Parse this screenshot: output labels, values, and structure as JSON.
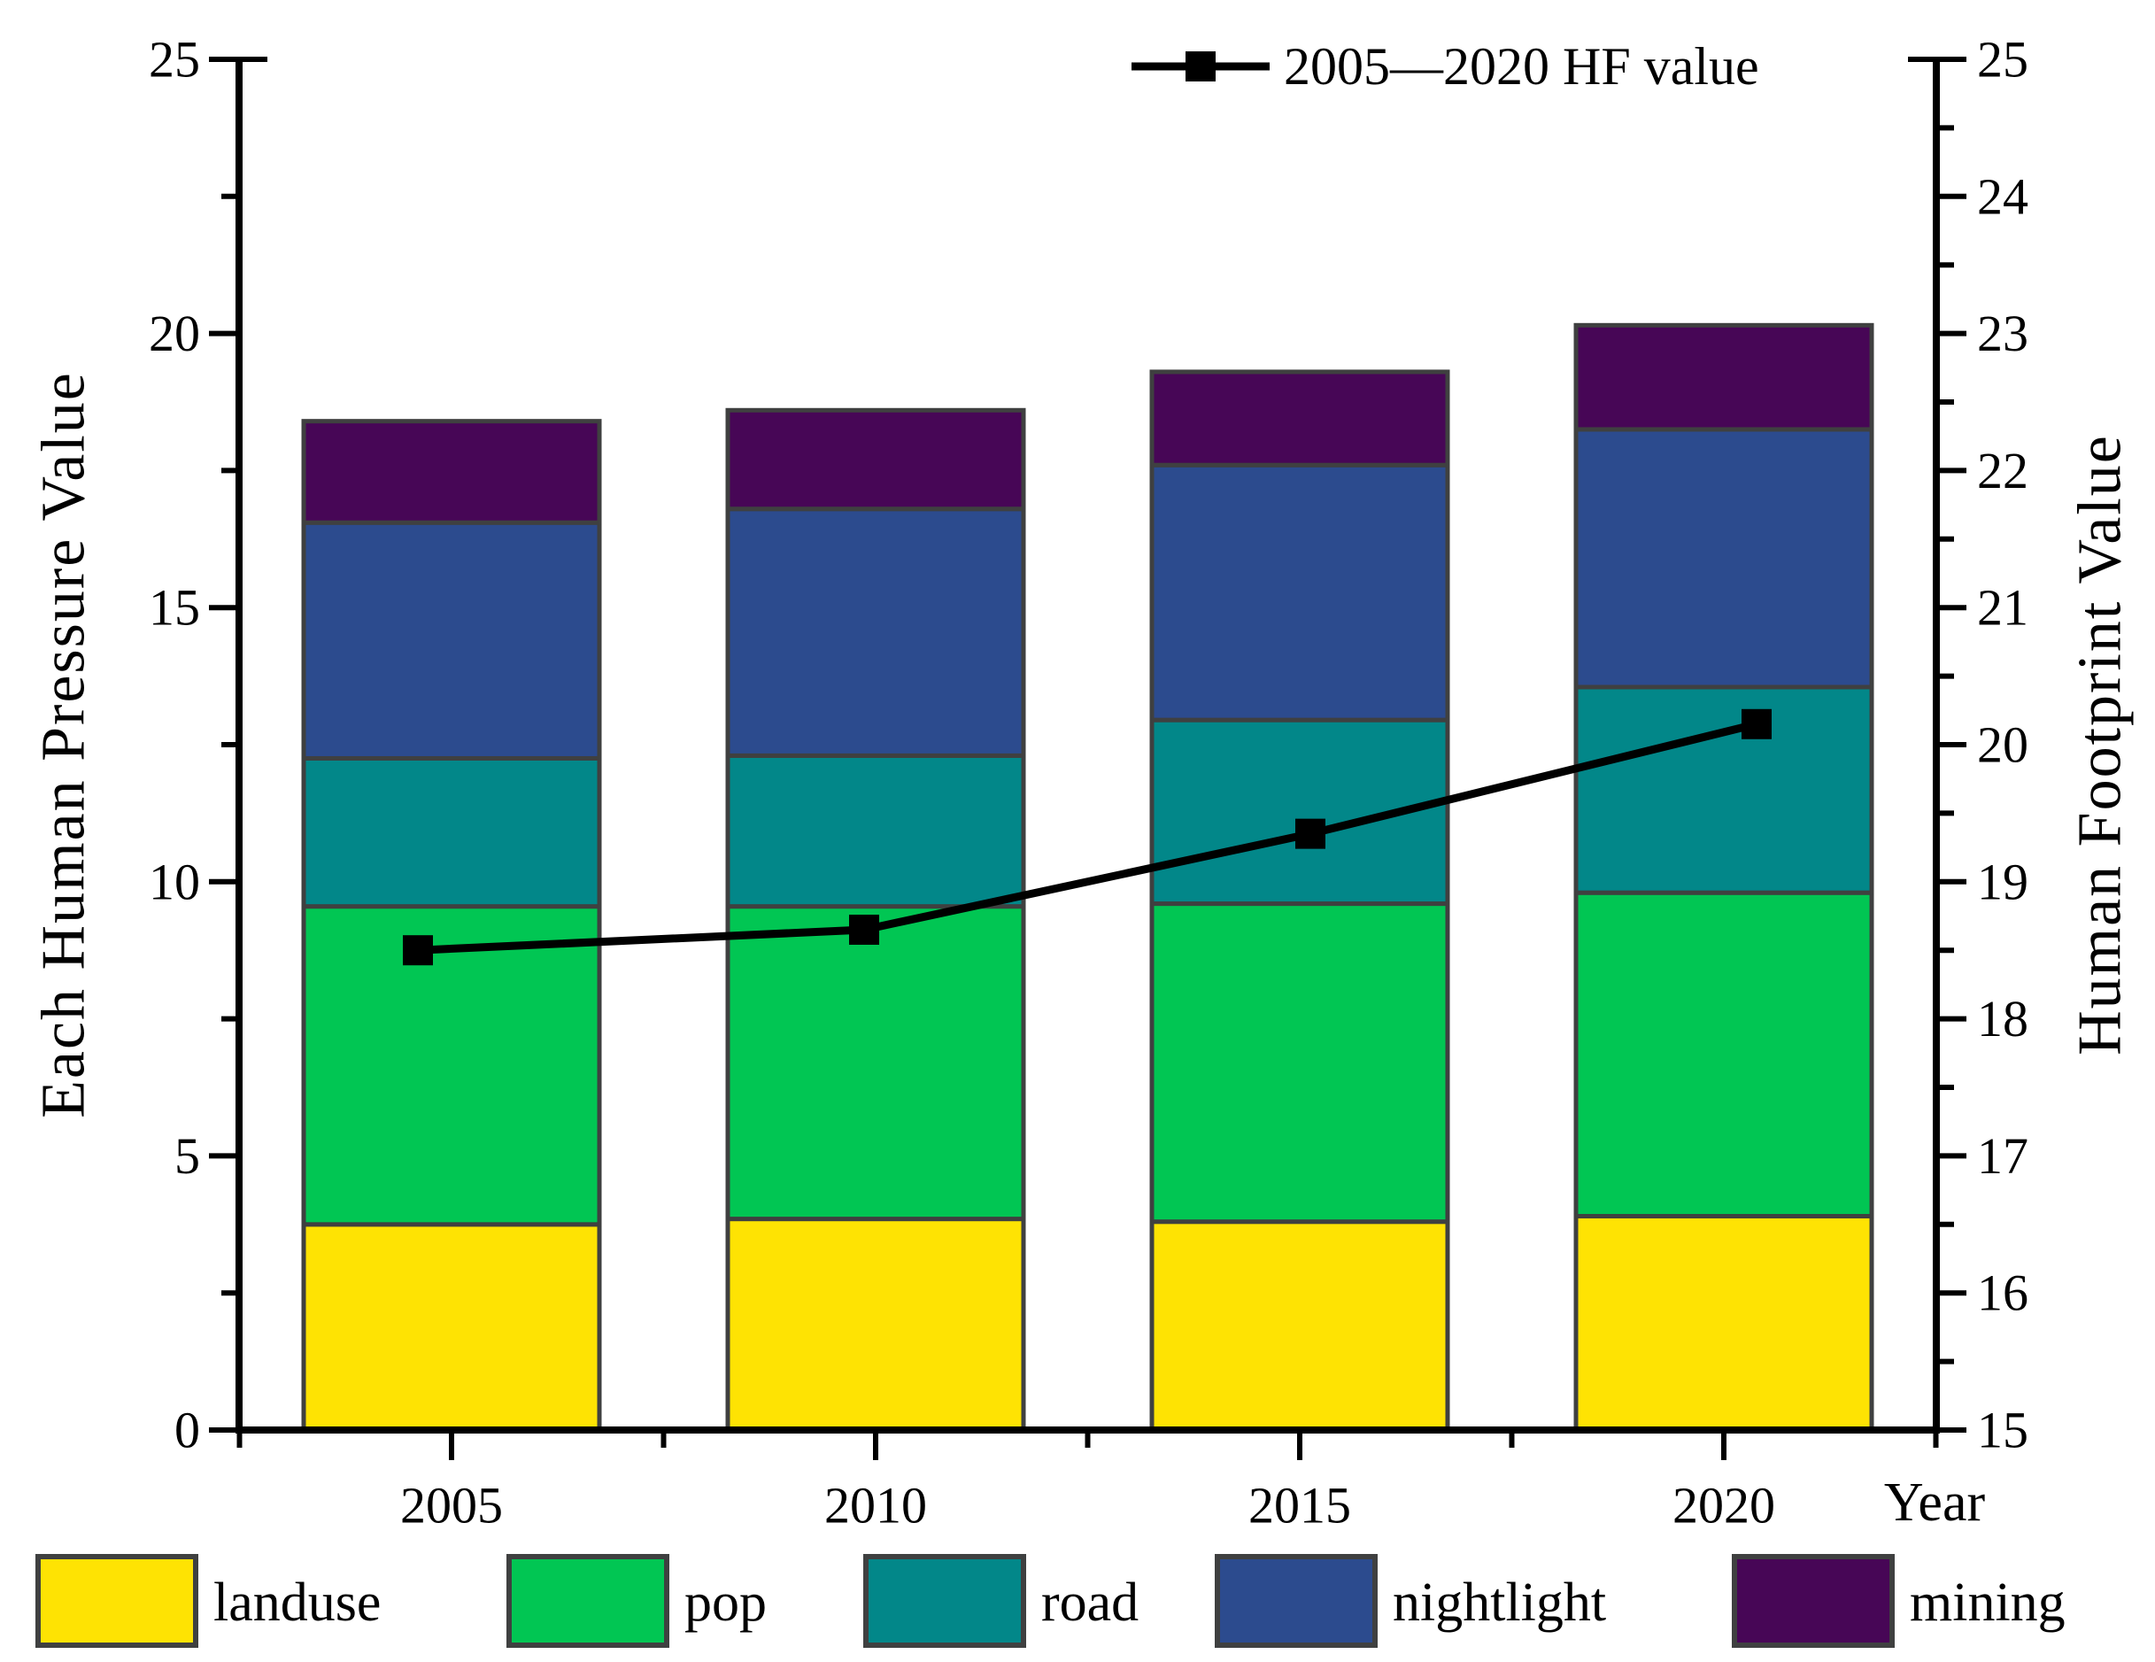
{
  "chart_data": {
    "type": "bar",
    "subtype": "stacked-bars-with-line-overlay",
    "title": "",
    "categories": [
      "2005",
      "2010",
      "2015",
      "2020"
    ],
    "stacked": true,
    "grid": false,
    "series": [
      {
        "name": "landuse",
        "color": "#FEE303",
        "values": [
          3.75,
          3.85,
          3.8,
          3.9
        ]
      },
      {
        "name": "pop",
        "color": "#01C653",
        "values": [
          5.8,
          5.7,
          5.8,
          5.9
        ]
      },
      {
        "name": "road",
        "color": "#028789",
        "values": [
          2.7,
          2.75,
          3.35,
          3.75
        ]
      },
      {
        "name": "nightlight",
        "color": "#2C4B8E",
        "values": [
          4.3,
          4.5,
          4.65,
          4.7
        ]
      },
      {
        "name": "mining",
        "color": "#470656",
        "values": [
          1.85,
          1.8,
          1.7,
          1.9
        ]
      }
    ],
    "bar_totals": [
      18.4,
      18.6,
      19.3,
      20.15
    ],
    "line_series": {
      "name": "2005—2020 HF value",
      "axis": "right",
      "color": "#000000",
      "marker": "square",
      "values": [
        18.5,
        18.65,
        19.35,
        20.15
      ]
    },
    "left_axis": {
      "label": "Each Human Pressure Value",
      "min": 0,
      "max": 25,
      "major_step": 5,
      "minor_step": 2.5,
      "major_ticks": [
        0,
        5,
        10,
        15,
        20,
        25
      ]
    },
    "right_axis": {
      "label": "Human Footprint Value",
      "min": 15,
      "max": 25,
      "major_step": 1,
      "minor_step": 0.5,
      "major_ticks": [
        15,
        16,
        17,
        18,
        19,
        20,
        21,
        22,
        23,
        24,
        25
      ]
    },
    "x_axis": {
      "label": "Year",
      "tick_labels": [
        "2005",
        "2010",
        "2015",
        "2020"
      ]
    },
    "legend_position": "bottom",
    "styles": {
      "axis_color": "#000000",
      "segment_border_color": "#3F4040",
      "background": "#FFFFFF"
    }
  }
}
